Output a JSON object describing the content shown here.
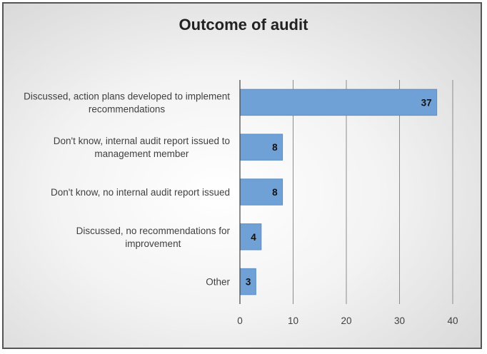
{
  "chart_data": {
    "type": "bar",
    "orientation": "horizontal",
    "title": "Outcome of audit",
    "categories": [
      [
        "Discussed, action plans developed to implement",
        "recommendations"
      ],
      [
        "Don't know, internal audit report issued to",
        "management member"
      ],
      [
        "Don't know, no internal audit report issued"
      ],
      [
        "Discussed, no recommendations for",
        "improvement"
      ],
      [
        "Other"
      ]
    ],
    "values": [
      37,
      8,
      8,
      4,
      3
    ],
    "xlim": [
      0,
      40
    ],
    "xticks": [
      0,
      10,
      20,
      30,
      40
    ],
    "grid": true,
    "data_labels": true,
    "colors": {
      "bar_fill": "#6fa1d6",
      "bar_stroke": "#5b8fc7",
      "gridline": "#8c8c8c",
      "axis": "#404040"
    }
  }
}
